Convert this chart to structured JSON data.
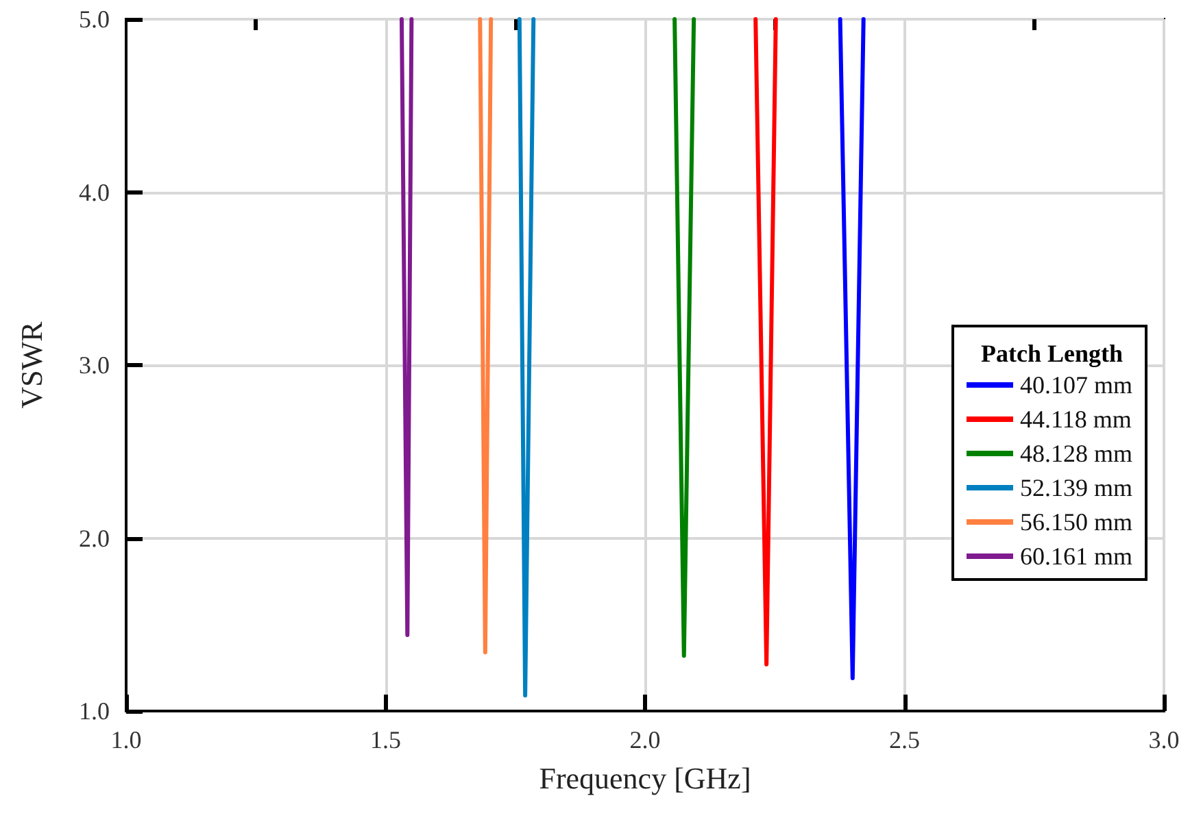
{
  "chart_data": {
    "type": "line",
    "xlabel": "Frequency [GHz]",
    "ylabel": "VSWR",
    "legend_title": "Patch Length",
    "xlim": [
      1.0,
      3.0
    ],
    "ylim": [
      1.0,
      5.0
    ],
    "xticks": [
      {
        "value": 1.0,
        "label": "1.0"
      },
      {
        "value": 1.25,
        "label": null
      },
      {
        "value": 1.5,
        "label": "1.5"
      },
      {
        "value": 1.75,
        "label": null
      },
      {
        "value": 2.0,
        "label": "2.0"
      },
      {
        "value": 2.25,
        "label": null
      },
      {
        "value": 2.5,
        "label": "2.5"
      },
      {
        "value": 2.75,
        "label": null
      },
      {
        "value": 3.0,
        "label": "3.0"
      }
    ],
    "yticks": [
      {
        "value": 1.0,
        "label": "1.0"
      },
      {
        "value": 2.0,
        "label": "2.0"
      },
      {
        "value": 3.0,
        "label": "3.0"
      },
      {
        "value": 4.0,
        "label": "4.0"
      },
      {
        "value": 5.0,
        "label": "5.0"
      }
    ],
    "grid": true,
    "legend": "right",
    "marker": "none",
    "line_style": "solid",
    "series": [
      {
        "name": "40.107 mm",
        "color": "#0000ff",
        "x": [
          2.376,
          2.4,
          2.421
        ],
        "values": [
          5.0,
          1.19,
          5.0
        ]
      },
      {
        "name": "44.118 mm",
        "color": "#ff0000",
        "x": [
          2.213,
          2.234,
          2.252
        ],
        "values": [
          5.0,
          1.27,
          5.0
        ]
      },
      {
        "name": "48.128 mm",
        "color": "#008000",
        "x": [
          2.057,
          2.075,
          2.094
        ],
        "values": [
          5.0,
          1.32,
          5.0
        ]
      },
      {
        "name": "52.139 mm",
        "color": "#0080c0",
        "x": [
          1.758,
          1.769,
          1.785
        ],
        "values": [
          5.0,
          1.09,
          5.0
        ]
      },
      {
        "name": "56.150 mm",
        "color": "#ff8040",
        "x": [
          1.682,
          1.692,
          1.703
        ],
        "values": [
          5.0,
          1.34,
          5.0
        ]
      },
      {
        "name": "60.161 mm",
        "color": "#7f1a8f",
        "x": [
          1.531,
          1.542,
          1.55
        ],
        "values": [
          5.0,
          1.44,
          5.0
        ]
      }
    ]
  }
}
